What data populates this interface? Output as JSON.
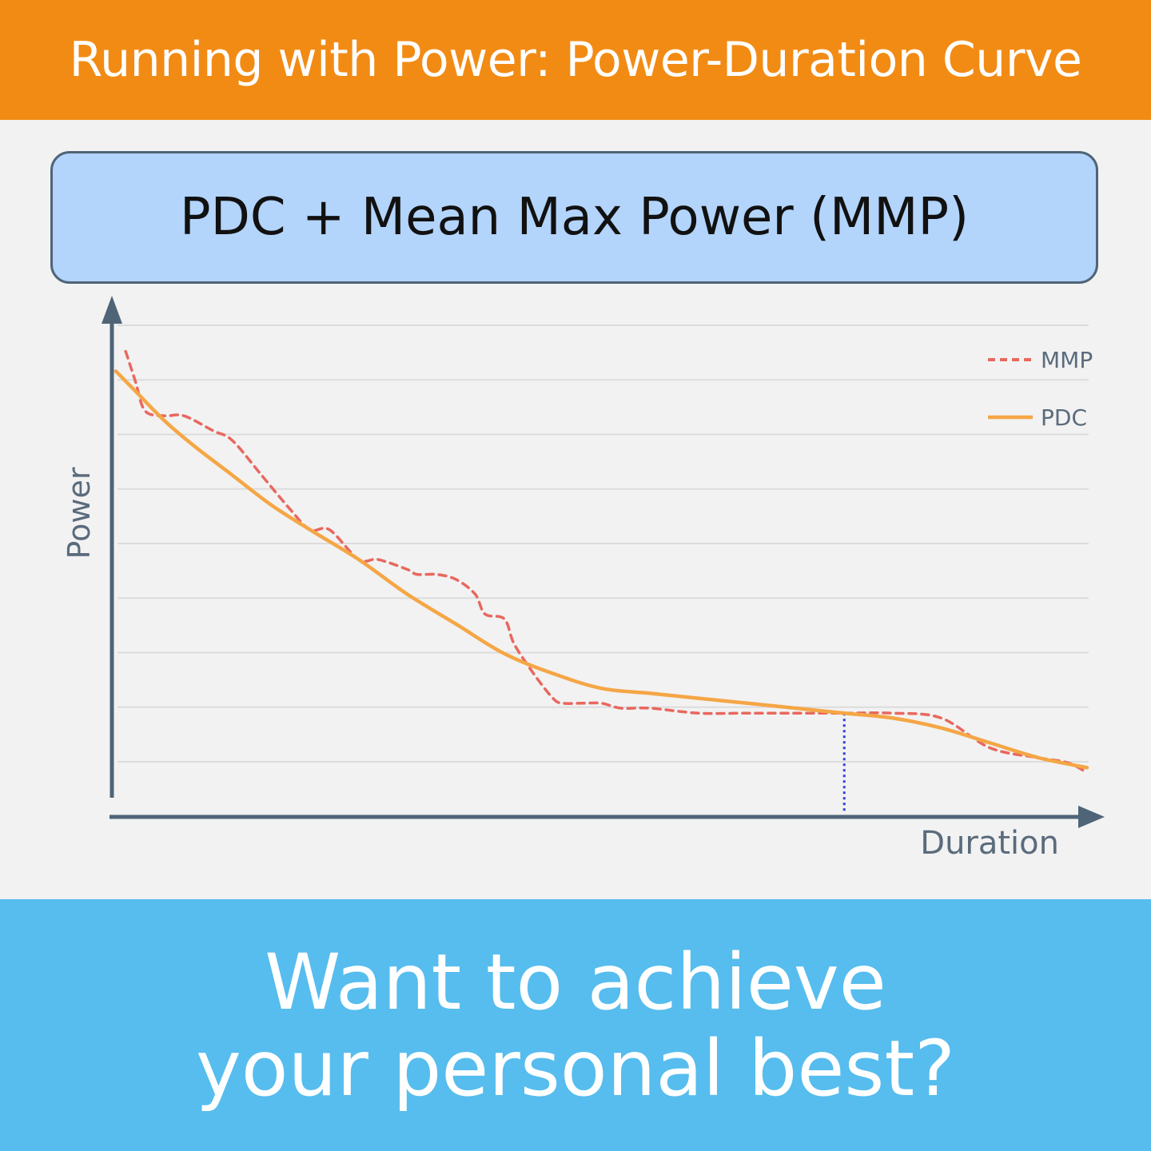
{
  "header": {
    "title": "Running with Power: Power-Duration Curve"
  },
  "chart_data": {
    "type": "line",
    "title": "PDC + Mean Max Power (MMP)",
    "xlabel": "Duration",
    "ylabel": "Power",
    "grid": true,
    "grid_lines": 9,
    "tick_labels": false,
    "legend_position": "top-right",
    "xlim": [
      0,
      100
    ],
    "ylim": [
      0,
      100
    ],
    "series": [
      {
        "name": "MMP",
        "style": "dashed",
        "color": "#e8685f",
        "x": [
          1,
          2,
          3,
          5,
          7,
          10,
          12,
          15,
          18,
          20,
          22,
          25,
          27,
          30,
          31,
          33,
          35,
          37,
          38,
          40,
          41,
          43,
          45,
          46,
          48,
          50,
          52,
          55,
          60,
          65,
          70,
          75,
          80,
          85,
          90,
          95,
          98,
          100
        ],
        "y": [
          92,
          86,
          80,
          79,
          79,
          76,
          74,
          67,
          60,
          56,
          56,
          50,
          50,
          48,
          47,
          47,
          46,
          43,
          39,
          38,
          33,
          27,
          22,
          21,
          21,
          21,
          20,
          20,
          19,
          19,
          19,
          19,
          19,
          18,
          12,
          10,
          9,
          7
        ]
      },
      {
        "name": "PDC",
        "style": "solid",
        "color": "#f5a645",
        "x": [
          0,
          2,
          5,
          8,
          12,
          16,
          20,
          25,
          30,
          35,
          40,
          45,
          50,
          55,
          60,
          65,
          70,
          75,
          80,
          85,
          90,
          95,
          100
        ],
        "y": [
          88,
          84,
          78,
          73,
          67,
          61,
          56,
          50,
          43,
          37,
          31,
          27,
          24,
          23,
          22,
          21,
          20,
          19,
          18,
          16,
          13,
          10,
          8
        ]
      }
    ],
    "annotations": [
      {
        "type": "vertical-marker",
        "style": "dotted",
        "color": "#2f3fd8",
        "x": 75
      }
    ]
  },
  "footer": {
    "line1": "Want to achieve",
    "line2": "your personal best?"
  }
}
